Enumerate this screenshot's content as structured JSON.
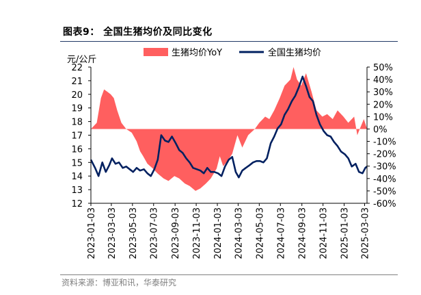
{
  "header": {
    "title": "图表9：  全国生猪均价及同比变化"
  },
  "footer": {
    "source": "资料来源：博亚和讯，华泰研究"
  },
  "chart_data": {
    "type": "line",
    "title": "图表9：  全国生猪均价及同比变化",
    "left_unit": "元/公斤",
    "legend_position": "top-center",
    "grid": false,
    "x_tick_labels": [
      "2023-01-03",
      "2023-03-03",
      "2023-05-03",
      "2023-07-03",
      "2023-09-03",
      "2023-11-03",
      "2024-01-03",
      "2024-03-03",
      "2024-05-03",
      "2024-07-03",
      "2024-09-03",
      "2024-11-03",
      "2025-01-03",
      "2025-03-03"
    ],
    "x_range": [
      "2023-01-03",
      "2025-03-10"
    ],
    "y_left": {
      "ticks": [
        12,
        13,
        14,
        15,
        16,
        17,
        18,
        19,
        20,
        21,
        22
      ],
      "range": [
        12,
        22
      ]
    },
    "y_right": {
      "ticks": [
        "50%",
        "40%",
        "30%",
        "20%",
        "10%",
        "0%",
        "-10%",
        "-20%",
        "-30%",
        "-40%",
        "-50%",
        "-60%"
      ],
      "range": [
        -60,
        50
      ],
      "unit": "%"
    },
    "series": [
      {
        "name": "生猪均价YoY",
        "type": "area",
        "axis": "right",
        "color": "#ff5f5f",
        "x": [
          "2023-01-03",
          "2023-01-20",
          "2023-02-01",
          "2023-02-10",
          "2023-02-20",
          "2023-03-01",
          "2023-03-10",
          "2023-03-20",
          "2023-04-01",
          "2023-04-15",
          "2023-05-01",
          "2023-05-15",
          "2023-05-25",
          "2023-06-03",
          "2023-06-15",
          "2023-07-01",
          "2023-07-15",
          "2023-08-01",
          "2023-08-15",
          "2023-09-01",
          "2023-09-15",
          "2023-10-01",
          "2023-10-15",
          "2023-11-01",
          "2023-11-15",
          "2023-12-01",
          "2023-12-15",
          "2024-01-01",
          "2024-01-10",
          "2024-01-20",
          "2024-02-01",
          "2024-02-15",
          "2024-03-01",
          "2024-03-15",
          "2024-04-01",
          "2024-04-20",
          "2024-05-03",
          "2024-05-20",
          "2024-06-01",
          "2024-06-15",
          "2024-07-01",
          "2024-07-15",
          "2024-08-01",
          "2024-08-10",
          "2024-08-20",
          "2024-09-01",
          "2024-09-15",
          "2024-10-01",
          "2024-10-15",
          "2024-11-01",
          "2024-11-15",
          "2024-12-01",
          "2024-12-15",
          "2025-01-01",
          "2025-01-15",
          "2025-02-01",
          "2025-02-10",
          "2025-02-20",
          "2025-03-01",
          "2025-03-10"
        ],
        "values": [
          0,
          5,
          25,
          32,
          30,
          28,
          25,
          15,
          5,
          0,
          -3,
          -10,
          -18,
          -22,
          -28,
          -32,
          -36,
          -40,
          -42,
          -38,
          -40,
          -44,
          -46,
          -50,
          -48,
          -44,
          -40,
          -32,
          -22,
          -30,
          -26,
          -20,
          -5,
          -15,
          -5,
          0,
          5,
          10,
          8,
          15,
          25,
          35,
          40,
          50,
          40,
          35,
          45,
          30,
          15,
          10,
          12,
          8,
          15,
          10,
          5,
          10,
          -5,
          2,
          8,
          0
        ]
      },
      {
        "name": "全国生猪均价",
        "type": "line",
        "axis": "left",
        "color": "#002060",
        "x": [
          "2023-01-03",
          "2023-01-15",
          "2023-01-25",
          "2023-02-05",
          "2023-02-15",
          "2023-02-25",
          "2023-03-05",
          "2023-03-15",
          "2023-03-25",
          "2023-04-05",
          "2023-04-15",
          "2023-04-25",
          "2023-05-05",
          "2023-05-15",
          "2023-05-25",
          "2023-06-05",
          "2023-06-15",
          "2023-06-25",
          "2023-07-05",
          "2023-07-15",
          "2023-07-25",
          "2023-08-05",
          "2023-08-15",
          "2023-08-25",
          "2023-09-05",
          "2023-09-15",
          "2023-09-25",
          "2023-10-05",
          "2023-10-15",
          "2023-10-25",
          "2023-11-05",
          "2023-11-15",
          "2023-11-25",
          "2023-12-05",
          "2023-12-15",
          "2023-12-25",
          "2024-01-05",
          "2024-01-15",
          "2024-01-25",
          "2024-02-05",
          "2024-02-15",
          "2024-02-25",
          "2024-03-05",
          "2024-03-15",
          "2024-03-25",
          "2024-04-05",
          "2024-04-15",
          "2024-04-25",
          "2024-05-05",
          "2024-05-15",
          "2024-05-25",
          "2024-06-05",
          "2024-06-15",
          "2024-06-25",
          "2024-07-05",
          "2024-07-15",
          "2024-07-25",
          "2024-08-05",
          "2024-08-15",
          "2024-08-25",
          "2024-09-05",
          "2024-09-15",
          "2024-09-25",
          "2024-10-05",
          "2024-10-15",
          "2024-10-25",
          "2024-11-05",
          "2024-11-15",
          "2024-11-25",
          "2024-12-05",
          "2024-12-15",
          "2024-12-25",
          "2025-01-05",
          "2025-01-15",
          "2025-01-25",
          "2025-02-05",
          "2025-02-15",
          "2025-02-25",
          "2025-03-05",
          "2025-03-10"
        ],
        "values": [
          15.2,
          14.6,
          14.0,
          15.0,
          14.3,
          14.8,
          15.3,
          14.9,
          15.0,
          14.6,
          14.7,
          14.5,
          14.3,
          14.6,
          14.4,
          14.5,
          14.2,
          14.0,
          14.5,
          15.2,
          17.0,
          16.6,
          16.5,
          16.9,
          16.4,
          15.9,
          15.7,
          15.3,
          15.0,
          14.6,
          14.5,
          14.4,
          14.2,
          14.6,
          14.3,
          14.3,
          14.2,
          14.0,
          14.7,
          15.2,
          15.4,
          14.3,
          13.9,
          14.4,
          14.6,
          14.8,
          15.0,
          15.1,
          15.1,
          15.0,
          15.3,
          16.4,
          16.9,
          17.5,
          17.8,
          18.5,
          18.9,
          19.5,
          19.9,
          20.5,
          21.3,
          20.6,
          19.8,
          19.5,
          18.5,
          17.8,
          17.3,
          17.0,
          16.9,
          16.5,
          16.2,
          15.8,
          15.6,
          15.3,
          14.7,
          14.9,
          14.3,
          14.2,
          14.6,
          14.7
        ]
      }
    ]
  }
}
